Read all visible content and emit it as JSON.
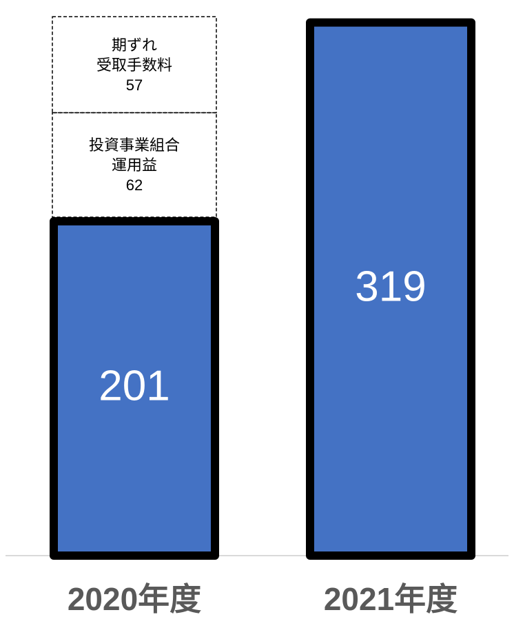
{
  "chart_data": {
    "type": "bar",
    "categories": [
      "2020年度",
      "2021年度"
    ],
    "values": [
      201,
      319
    ],
    "ylim": [
      0,
      325
    ],
    "grid": false,
    "bar_color": "#4472c4",
    "border_color": "#000000",
    "label_color": "#ffffff",
    "axis_label_color": "#595959",
    "baseline_color": "#d9d9d9",
    "stack_additions": [
      {
        "category": "2020年度",
        "lines": [
          "投資事業組合",
          "運用益"
        ],
        "value": 62,
        "value_label": "62"
      },
      {
        "category": "2020年度",
        "lines": [
          "期ずれ",
          "受取手数料"
        ],
        "value": 57,
        "value_label": "57"
      }
    ]
  }
}
